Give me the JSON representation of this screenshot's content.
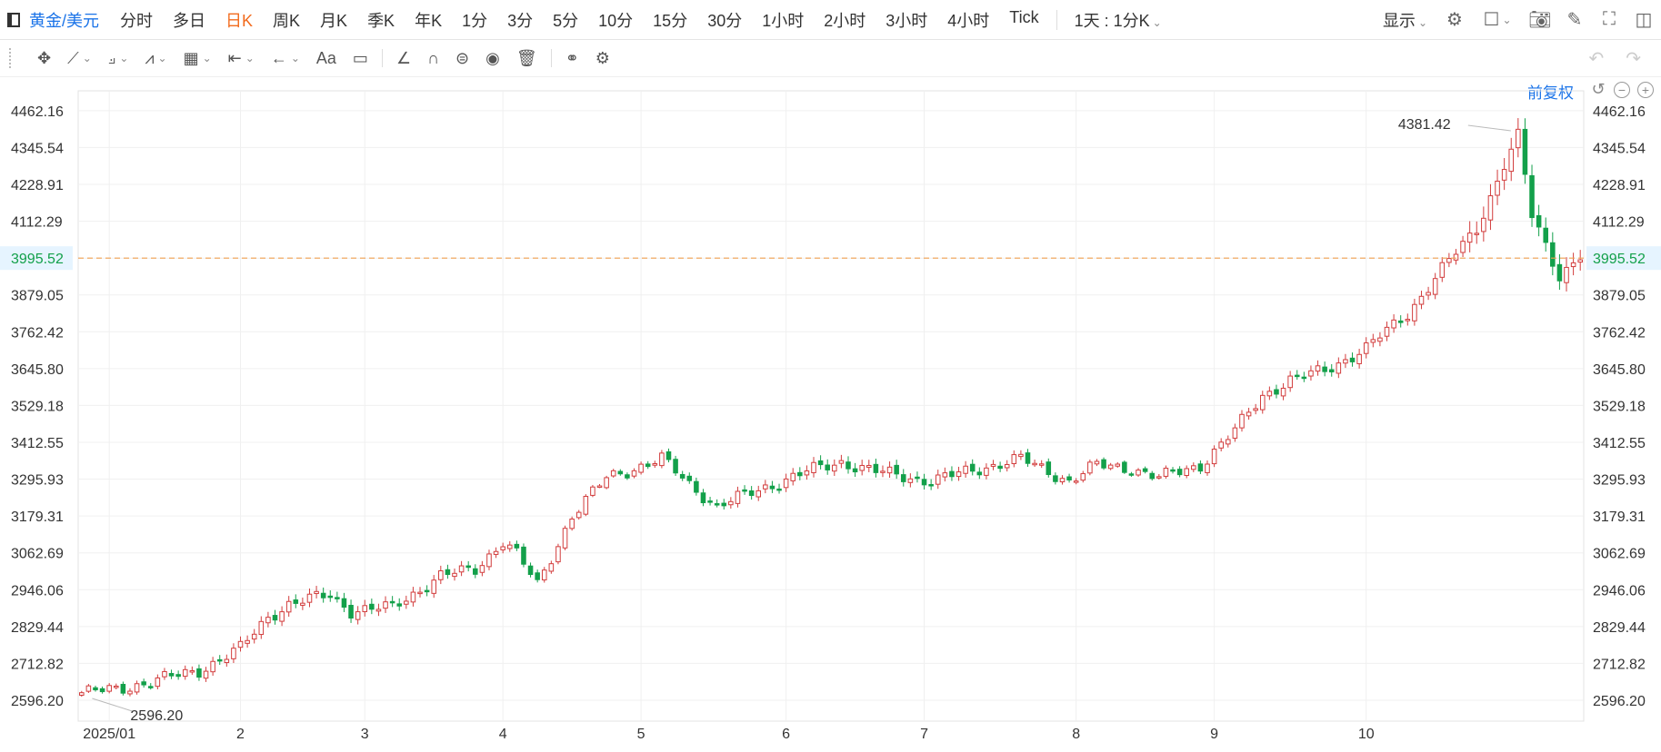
{
  "topbar": {
    "symbol": "黄金/美元",
    "periods": [
      "分时",
      "多日",
      "日K",
      "周K",
      "月K",
      "季K",
      "年K",
      "1分",
      "3分",
      "5分",
      "10分",
      "15分",
      "30分",
      "1小时",
      "2小时",
      "3小时",
      "4小时",
      "Tick"
    ],
    "active_period": "日K",
    "interval_select": "1天 : 1分K",
    "display_label": "显示"
  },
  "adjust_label": "前复权",
  "colors": {
    "up": "#d23c3c",
    "down": "#13a04a",
    "current_line": "#f0a050",
    "current_bg": "#e6f4ff",
    "current_text": "#13a04a",
    "grid": "#f0f0f0"
  },
  "chart_data": {
    "type": "candlestick",
    "current_price": "3995.52",
    "max_label": "4381.42",
    "min_label": "2596.20",
    "ylim": [
      2530,
      4525
    ],
    "y_ticks": [
      "4462.16",
      "4345.54",
      "4228.91",
      "4112.29",
      "3995.52",
      "3879.05",
      "3762.42",
      "3645.80",
      "3529.18",
      "3412.55",
      "3295.93",
      "3179.31",
      "3062.69",
      "2946.06",
      "2829.44",
      "2712.82",
      "2596.20"
    ],
    "x_ticks": [
      {
        "label": "2025/01",
        "index": 4
      },
      {
        "label": "2",
        "index": 23
      },
      {
        "label": "3",
        "index": 41
      },
      {
        "label": "4",
        "index": 61
      },
      {
        "label": "5",
        "index": 81
      },
      {
        "label": "6",
        "index": 102
      },
      {
        "label": "7",
        "index": 122
      },
      {
        "label": "8",
        "index": 144
      },
      {
        "label": "9",
        "index": 164
      },
      {
        "label": "10",
        "index": 186
      }
    ],
    "anchors": [
      [
        0,
        2620
      ],
      [
        5,
        2630
      ],
      [
        10,
        2655
      ],
      [
        17,
        2690
      ],
      [
        23,
        2760
      ],
      [
        27,
        2860
      ],
      [
        30,
        2900
      ],
      [
        36,
        2930
      ],
      [
        39,
        2880
      ],
      [
        45,
        2890
      ],
      [
        52,
        2990
      ],
      [
        57,
        3010
      ],
      [
        61,
        3100
      ],
      [
        63,
        3060
      ],
      [
        66,
        2960
      ],
      [
        71,
        3180
      ],
      [
        76,
        3300
      ],
      [
        80,
        3330
      ],
      [
        84,
        3360
      ],
      [
        88,
        3280
      ],
      [
        92,
        3210
      ],
      [
        99,
        3270
      ],
      [
        105,
        3320
      ],
      [
        110,
        3350
      ],
      [
        115,
        3320
      ],
      [
        123,
        3290
      ],
      [
        130,
        3330
      ],
      [
        136,
        3360
      ],
      [
        143,
        3290
      ],
      [
        147,
        3340
      ],
      [
        152,
        3330
      ],
      [
        156,
        3300
      ],
      [
        162,
        3340
      ],
      [
        167,
        3450
      ],
      [
        171,
        3560
      ],
      [
        175,
        3610
      ],
      [
        180,
        3640
      ],
      [
        186,
        3710
      ],
      [
        192,
        3820
      ],
      [
        197,
        3960
      ],
      [
        202,
        4090
      ],
      [
        206,
        4290
      ],
      [
        208,
        4380
      ],
      [
        210,
        4130
      ],
      [
        212,
        4040
      ],
      [
        214,
        3940
      ],
      [
        217,
        4000
      ]
    ],
    "count": 218
  }
}
